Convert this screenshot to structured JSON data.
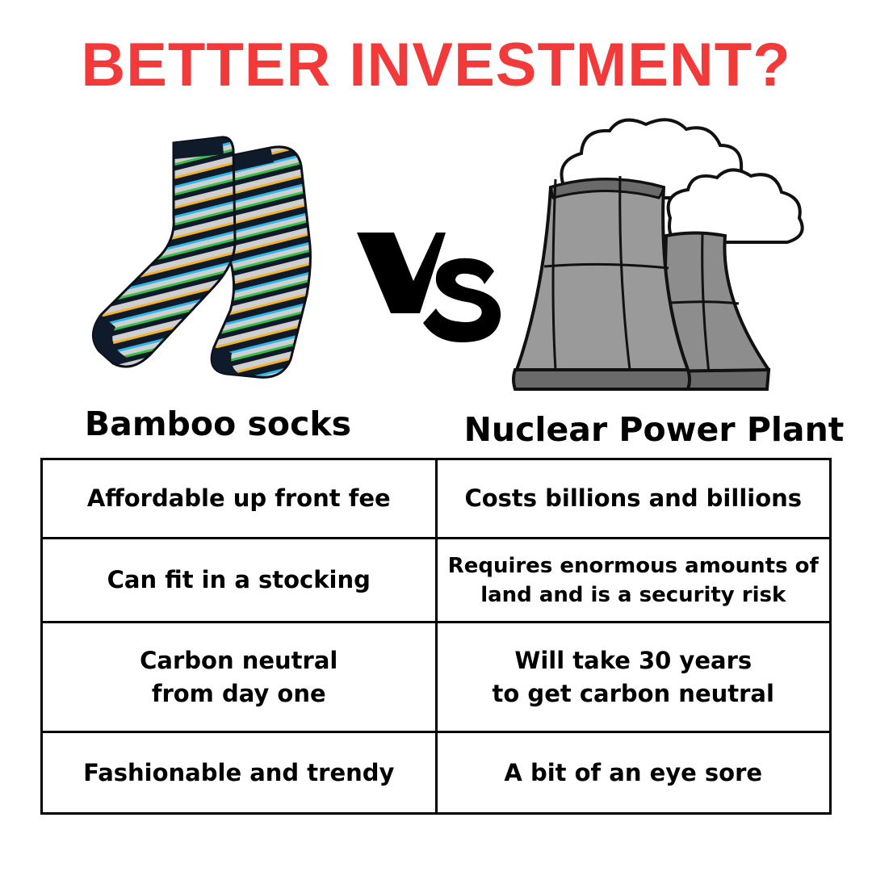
{
  "title": "BETTER INVESTMENT?",
  "colors": {
    "title": "#f23a3a",
    "text": "#000000",
    "tower_fill": "#8d8d8d",
    "tower_shade": "#6a6a6a"
  },
  "icons": {
    "left": "striped-socks-image",
    "center": "vs-logo",
    "right": "cooling-towers-illustration"
  },
  "vs_text": "VS",
  "columns": {
    "left": "Bamboo socks",
    "right": "Nuclear Power Plant"
  },
  "rows": [
    {
      "left": "Affordable up front fee",
      "right": "Costs billions and billions"
    },
    {
      "left": "Can fit in a stocking",
      "right": "Requires enormous amounts of\nland and is a security risk"
    },
    {
      "left": "Carbon neutral\nfrom day one",
      "right": "Will take 30 years\nto get carbon neutral"
    },
    {
      "left": "Fashionable and trendy",
      "right": "A bit of an eye sore"
    }
  ]
}
